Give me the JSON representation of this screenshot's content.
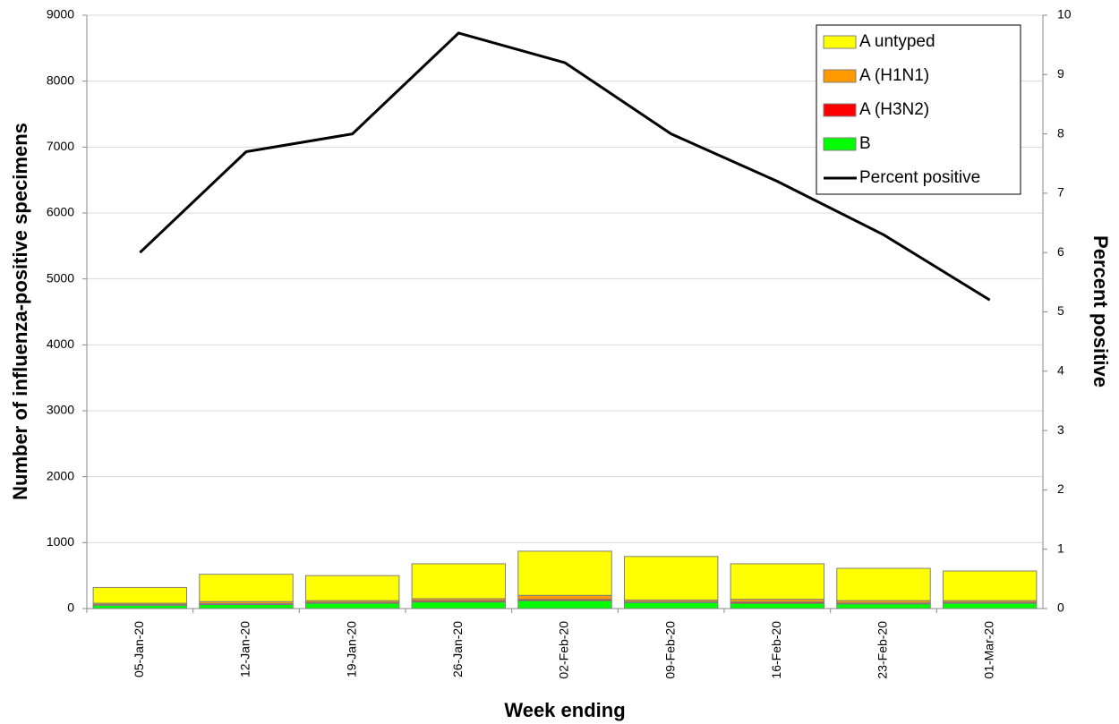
{
  "chart_data": {
    "type": "bar",
    "stacked": true,
    "x_label": "Week ending",
    "y_label": "Number of influenza-positive specimens",
    "y2_label": "Percent positive",
    "categories": [
      "05-Jan-20",
      "12-Jan-20",
      "19-Jan-20",
      "26-Jan-20",
      "02-Feb-20",
      "09-Feb-20",
      "16-Feb-20",
      "23-Feb-20",
      "01-Mar-20"
    ],
    "series": [
      {
        "name": "A untyped",
        "color": "#ffff00",
        "values": [
          240,
          415,
          380,
          530,
          670,
          660,
          540,
          490,
          450
        ]
      },
      {
        "name": "A (H1N1)",
        "color": "#ff9900",
        "values": [
          20,
          30,
          25,
          30,
          60,
          25,
          40,
          35,
          25
        ]
      },
      {
        "name": "A (H3N2)",
        "color": "#ff0000",
        "values": [
          10,
          15,
          15,
          20,
          20,
          15,
          20,
          15,
          15
        ]
      },
      {
        "name": "B",
        "color": "#00ff00",
        "values": [
          50,
          60,
          80,
          100,
          120,
          90,
          80,
          70,
          80
        ]
      },
      {
        "name": "Percent positive",
        "color": "#000000",
        "type": "line",
        "axis": "y2",
        "values": [
          6.0,
          7.7,
          8.0,
          9.7,
          9.2,
          8.0,
          7.2,
          6.3,
          5.2
        ]
      }
    ],
    "ylim": [
      0,
      9000
    ],
    "yticks": [
      0,
      1000,
      2000,
      3000,
      4000,
      5000,
      6000,
      7000,
      8000,
      9000
    ],
    "y2lim": [
      0,
      10
    ],
    "y2ticks": [
      0,
      1,
      2,
      3,
      4,
      5,
      6,
      7,
      8,
      9,
      10
    ],
    "grid": true,
    "legend": "top-right"
  }
}
